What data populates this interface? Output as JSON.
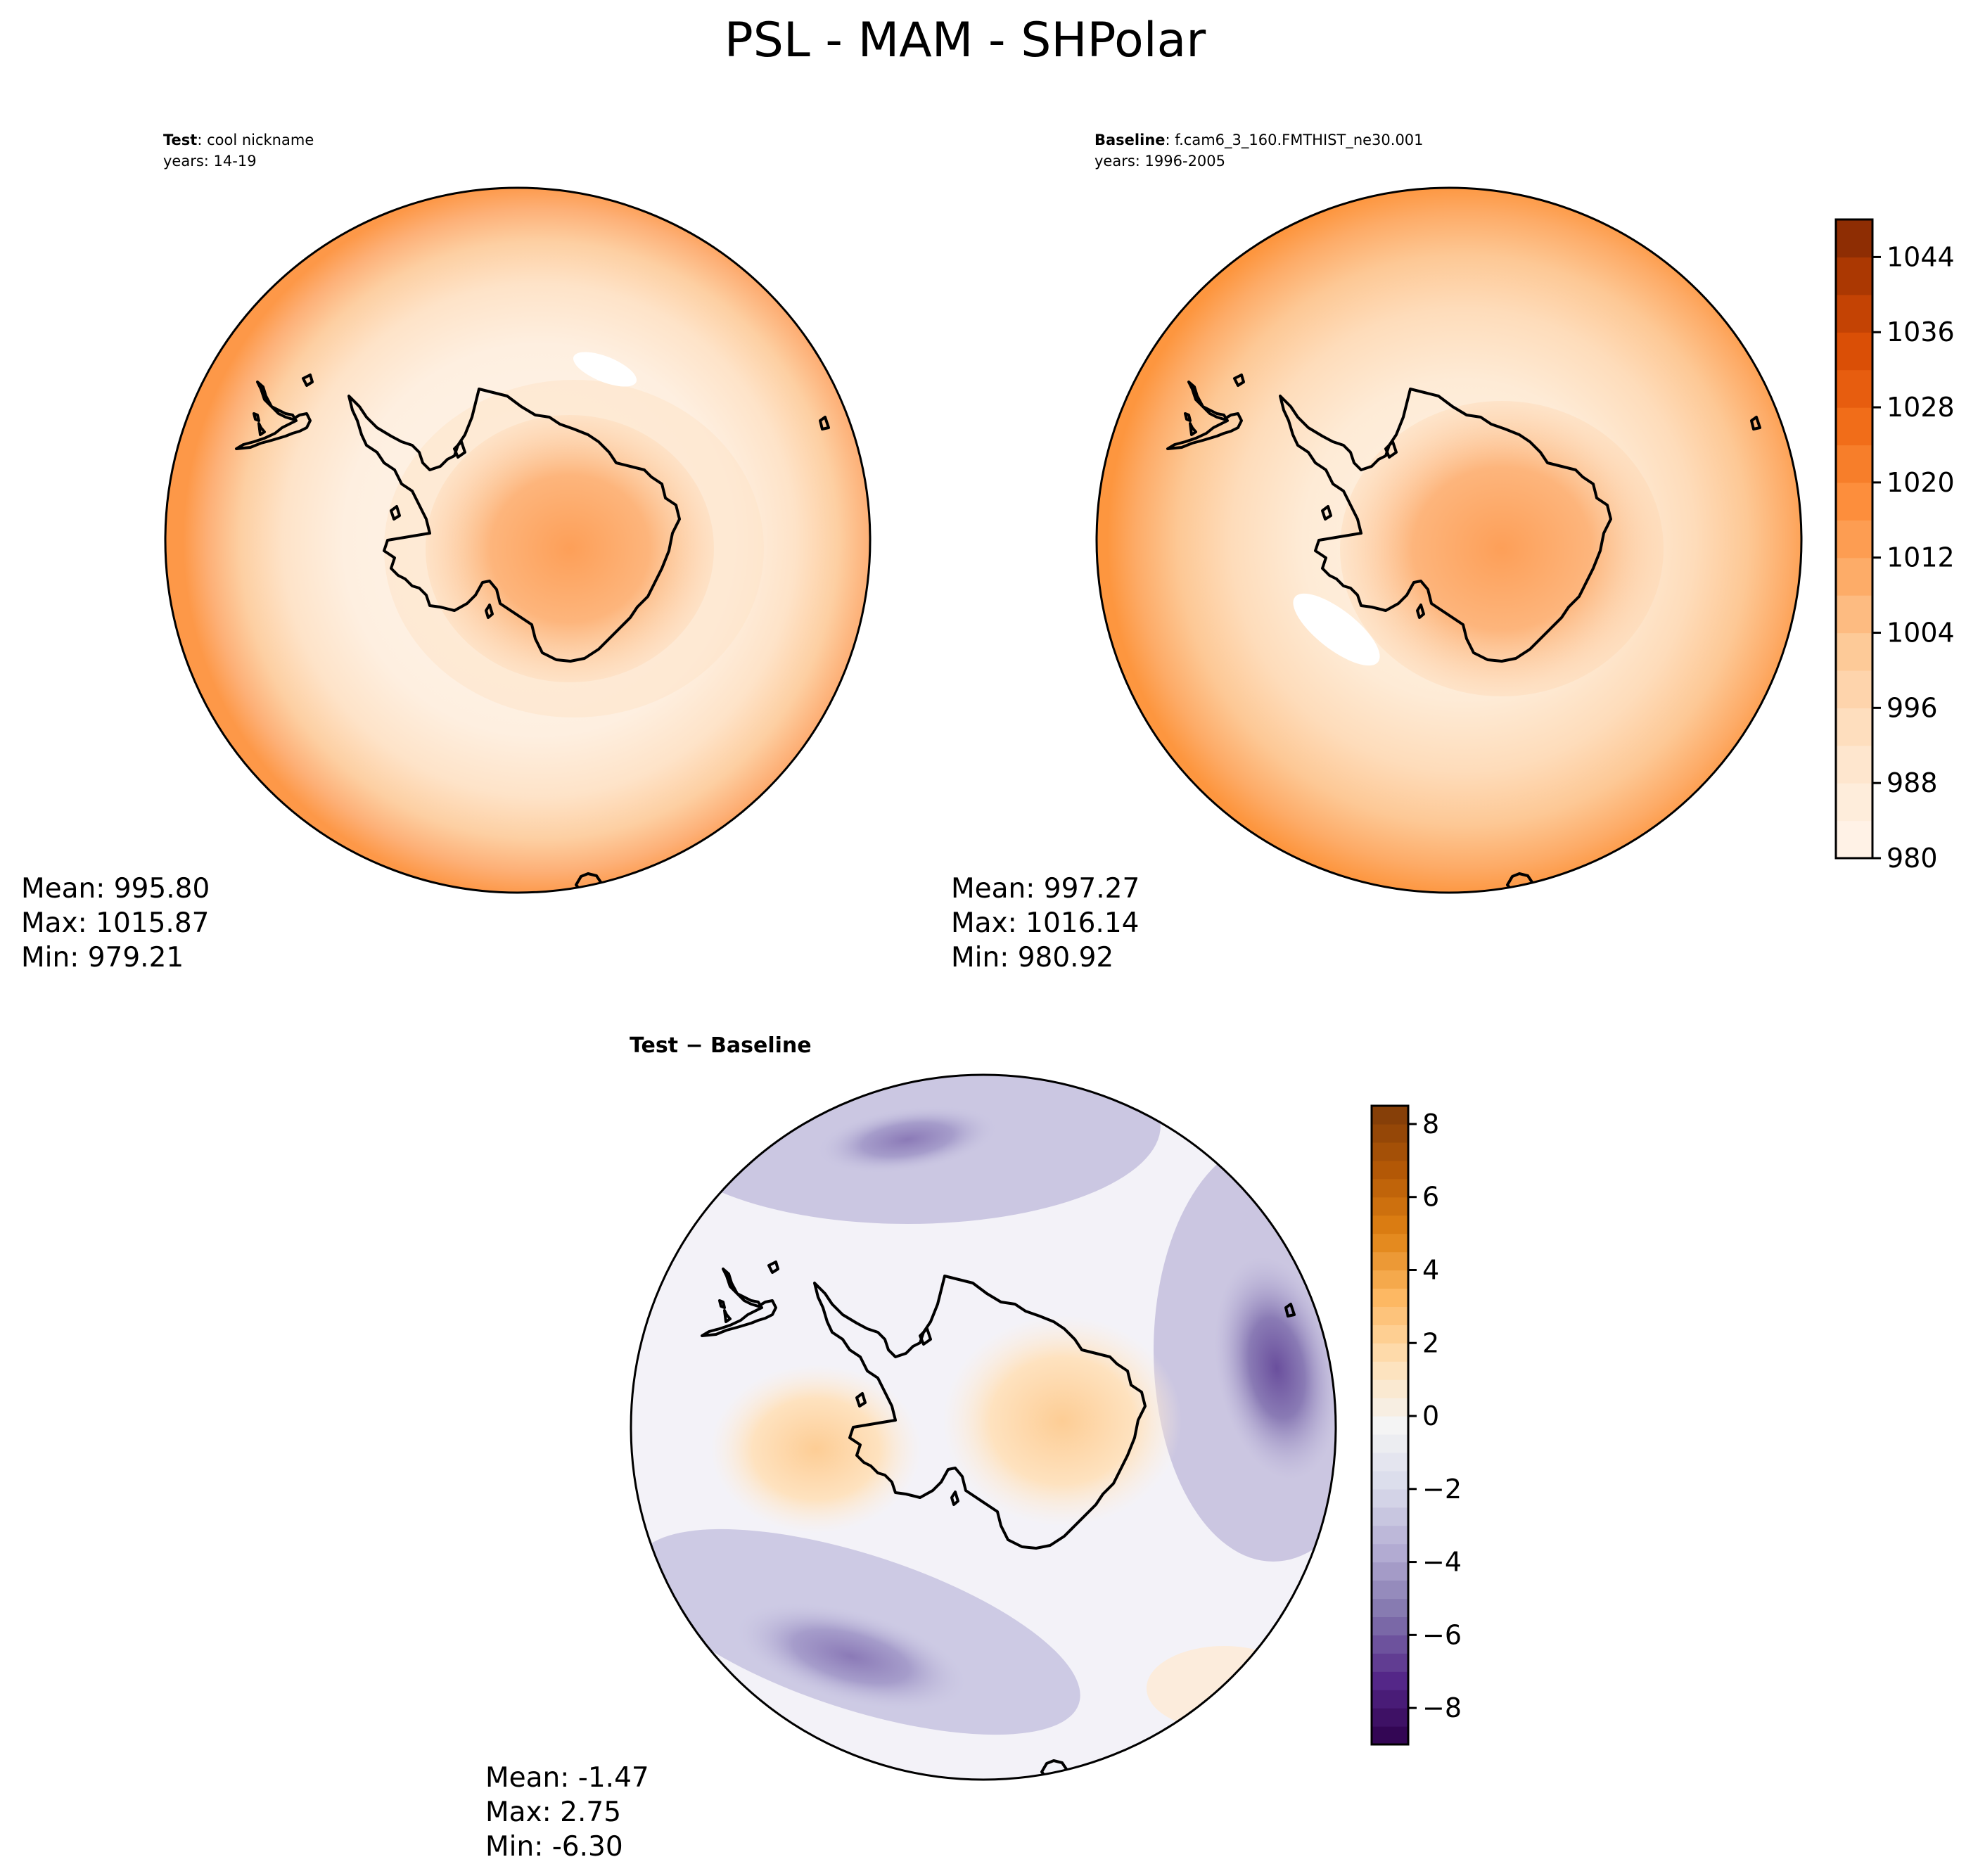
{
  "figure": {
    "title": "PSL - MAM - SHPolar"
  },
  "panels": {
    "test": {
      "label_bold": "Test",
      "label_rest": ": cool nickname",
      "years": "years: 14-19",
      "stats": {
        "mean": "Mean: 995.80",
        "max": "Max: 1015.87",
        "min": "Min: 979.21"
      }
    },
    "baseline": {
      "label_bold": "Baseline",
      "label_rest": ": f.cam6_3_160.FMTHIST_ne30.001",
      "years": "years: 1996-2005",
      "stats": {
        "mean": "Mean: 997.27",
        "max": "Max: 1016.14",
        "min": "Min: 980.92"
      }
    },
    "diff": {
      "title": "Test − Baseline",
      "stats": {
        "mean": "Mean: -1.47",
        "max": "Max:  2.75",
        "min": "Min: -6.30"
      }
    }
  },
  "chart_data": [
    {
      "type": "heatmap",
      "name": "Test",
      "projection": "South Polar Stereographic",
      "variable": "PSL",
      "season": "MAM",
      "colormap": "Oranges",
      "colorbar": {
        "min": 980,
        "max": 1048,
        "interval": 4,
        "ticks": [
          980,
          988,
          996,
          1004,
          1012,
          1020,
          1028,
          1036,
          1044
        ],
        "tick_labels": [
          "980",
          "988",
          "996",
          "1004",
          "1012",
          "1020",
          "1028",
          "1036",
          "1044"
        ]
      },
      "stats": {
        "mean": 995.8,
        "max": 1015.87,
        "min": 979.21
      }
    },
    {
      "type": "heatmap",
      "name": "Baseline",
      "projection": "South Polar Stereographic",
      "variable": "PSL",
      "season": "MAM",
      "colormap": "Oranges",
      "colorbar": {
        "min": 980,
        "max": 1048,
        "interval": 4,
        "ticks": [
          980,
          988,
          996,
          1004,
          1012,
          1020,
          1028,
          1036,
          1044
        ],
        "tick_labels": [
          "980",
          "988",
          "996",
          "1004",
          "1012",
          "1020",
          "1028",
          "1036",
          "1044"
        ]
      },
      "stats": {
        "mean": 997.27,
        "max": 1016.14,
        "min": 980.92
      }
    },
    {
      "type": "heatmap",
      "name": "Test - Baseline",
      "projection": "South Polar Stereographic",
      "variable": "PSL difference",
      "season": "MAM",
      "colormap": "PuOr_r",
      "colorbar": {
        "min": -9,
        "max": 8.5,
        "interval": 0.5,
        "ticks": [
          -8,
          -6,
          -4,
          -2,
          0,
          2,
          4,
          6,
          8
        ],
        "tick_labels": [
          "−8",
          "−6",
          "−4",
          "−2",
          "0",
          "2",
          "4",
          "6",
          "8"
        ]
      },
      "stats": {
        "mean": -1.47,
        "max": 2.75,
        "min": -6.3
      }
    }
  ],
  "colors": {
    "oranges": [
      "#fff5eb",
      "#feebd7",
      "#fedcba",
      "#fdc895",
      "#fdab67",
      "#fd8f3d",
      "#f3701b",
      "#e05207",
      "#b63c02",
      "#7f2704"
    ],
    "puor_r": [
      "#2d004b",
      "#542788",
      "#8073ac",
      "#b2abd2",
      "#d8daeb",
      "#f4f4f4",
      "#fee0b6",
      "#fdb863",
      "#e08214",
      "#b35806",
      "#7f3b08"
    ]
  }
}
